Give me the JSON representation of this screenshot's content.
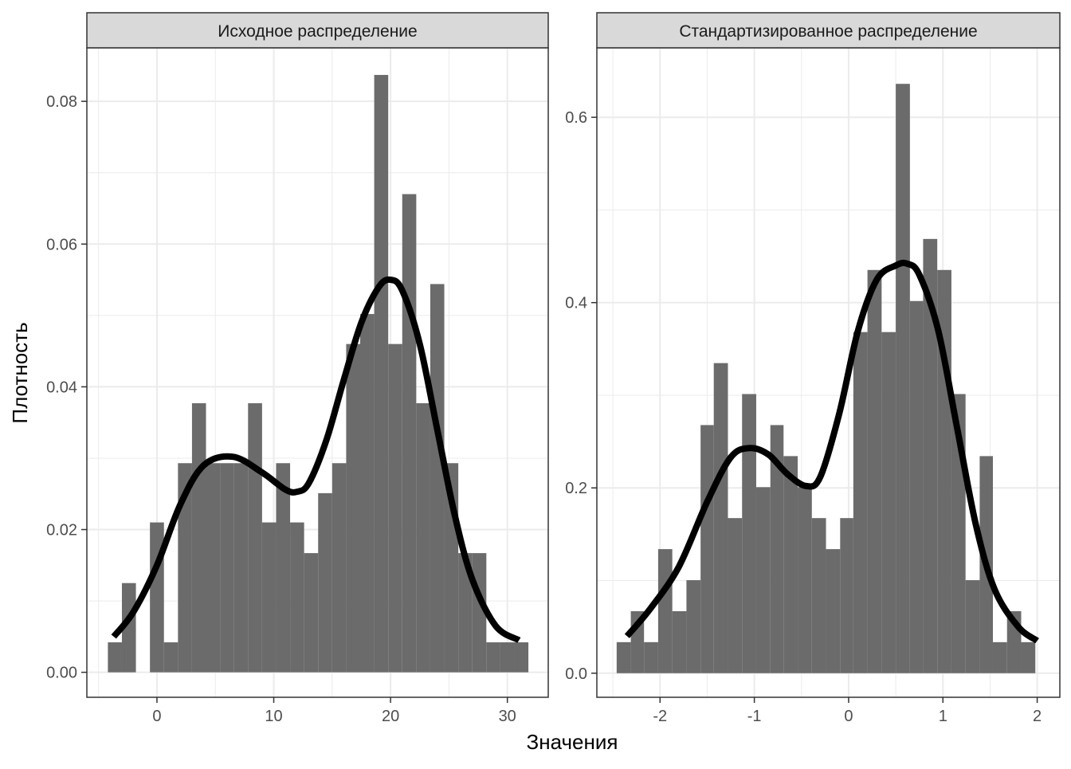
{
  "figure": {
    "xlabel": "Значения",
    "ylabel": "Плотность",
    "background_color": "#ffffff",
    "strip_fill": "#d9d9d9",
    "bar_color": "#6b6b6b",
    "curve_color": "#000000",
    "grid_color": "#ebebeb"
  },
  "chart_data": [
    {
      "type": "bar",
      "title": "Исходное распределение",
      "xlim": [
        -6,
        33.5
      ],
      "ylim": [
        -0.0035,
        0.0875
      ],
      "xticks": [
        0,
        10,
        20,
        30
      ],
      "yticks": [
        0.0,
        0.02,
        0.04,
        0.06,
        0.08
      ],
      "ytick_labels": [
        "0.00",
        "0.02",
        "0.04",
        "0.06",
        "0.08"
      ],
      "grid": true,
      "bins": [
        {
          "x0": -4.2,
          "x1": -3.0,
          "value": 0.0042
        },
        {
          "x0": -3.0,
          "x1": -1.8,
          "value": 0.0125
        },
        {
          "x0": -0.6,
          "x1": 0.6,
          "value": 0.021
        },
        {
          "x0": 0.6,
          "x1": 1.8,
          "value": 0.0042
        },
        {
          "x0": 1.8,
          "x1": 3.0,
          "value": 0.0293
        },
        {
          "x0": 3.0,
          "x1": 4.2,
          "value": 0.0377
        },
        {
          "x0": 4.2,
          "x1": 5.4,
          "value": 0.0293
        },
        {
          "x0": 5.4,
          "x1": 6.6,
          "value": 0.0293
        },
        {
          "x0": 6.6,
          "x1": 7.8,
          "value": 0.0293
        },
        {
          "x0": 7.8,
          "x1": 9.0,
          "value": 0.0377
        },
        {
          "x0": 9.0,
          "x1": 10.2,
          "value": 0.021
        },
        {
          "x0": 10.2,
          "x1": 11.4,
          "value": 0.0293
        },
        {
          "x0": 11.4,
          "x1": 12.6,
          "value": 0.021
        },
        {
          "x0": 12.6,
          "x1": 13.8,
          "value": 0.0167
        },
        {
          "x0": 13.8,
          "x1": 15.0,
          "value": 0.0251
        },
        {
          "x0": 15.0,
          "x1": 16.2,
          "value": 0.0293
        },
        {
          "x0": 16.2,
          "x1": 17.4,
          "value": 0.046
        },
        {
          "x0": 17.4,
          "x1": 18.6,
          "value": 0.0502
        },
        {
          "x0": 18.6,
          "x1": 19.8,
          "value": 0.0837
        },
        {
          "x0": 19.8,
          "x1": 21.0,
          "value": 0.046
        },
        {
          "x0": 21.0,
          "x1": 22.2,
          "value": 0.067
        },
        {
          "x0": 22.2,
          "x1": 23.4,
          "value": 0.0377
        },
        {
          "x0": 23.4,
          "x1": 24.6,
          "value": 0.0544
        },
        {
          "x0": 24.6,
          "x1": 25.8,
          "value": 0.0293
        },
        {
          "x0": 25.8,
          "x1": 27.0,
          "value": 0.0167
        },
        {
          "x0": 27.0,
          "x1": 28.2,
          "value": 0.0167
        },
        {
          "x0": 28.2,
          "x1": 29.4,
          "value": 0.0042
        },
        {
          "x0": 29.4,
          "x1": 30.6,
          "value": 0.0042
        },
        {
          "x0": 30.6,
          "x1": 31.8,
          "value": 0.0042
        }
      ],
      "density": {
        "x": [
          -3.7,
          -2.0,
          0.0,
          2.0,
          4.0,
          6.5,
          9.0,
          11.0,
          12.0,
          13.0,
          14.5,
          16.0,
          17.5,
          19.0,
          20.0,
          21.0,
          22.5,
          24.0,
          25.5,
          27.0,
          29.0,
          31.0
        ],
        "y": [
          0.005,
          0.0085,
          0.015,
          0.0235,
          0.029,
          0.0302,
          0.028,
          0.0256,
          0.0253,
          0.0265,
          0.0325,
          0.041,
          0.049,
          0.054,
          0.055,
          0.0535,
          0.046,
          0.034,
          0.022,
          0.013,
          0.0065,
          0.0045
        ]
      }
    },
    {
      "type": "bar",
      "title": "Стандартизированное распределение",
      "xlim": [
        -2.67,
        2.24
      ],
      "ylim": [
        -0.026,
        0.675
      ],
      "xticks": [
        -2,
        -1,
        0,
        1,
        2
      ],
      "yticks": [
        0.0,
        0.2,
        0.4,
        0.6
      ],
      "ytick_labels": [
        "0.0",
        "0.2",
        "0.4",
        "0.6"
      ],
      "grid": true,
      "bins": [
        {
          "x0": -2.46,
          "x1": -2.31,
          "value": 0.0335
        },
        {
          "x0": -2.31,
          "x1": -2.17,
          "value": 0.0669
        },
        {
          "x0": -2.17,
          "x1": -2.02,
          "value": 0.0335
        },
        {
          "x0": -2.02,
          "x1": -1.87,
          "value": 0.1339
        },
        {
          "x0": -1.87,
          "x1": -1.72,
          "value": 0.0669
        },
        {
          "x0": -1.72,
          "x1": -1.57,
          "value": 0.1004
        },
        {
          "x0": -1.57,
          "x1": -1.43,
          "value": 0.2678
        },
        {
          "x0": -1.43,
          "x1": -1.28,
          "value": 0.3347
        },
        {
          "x0": -1.28,
          "x1": -1.13,
          "value": 0.1674
        },
        {
          "x0": -1.13,
          "x1": -0.98,
          "value": 0.3013
        },
        {
          "x0": -0.98,
          "x1": -0.83,
          "value": 0.2008
        },
        {
          "x0": -0.83,
          "x1": -0.69,
          "value": 0.2678
        },
        {
          "x0": -0.69,
          "x1": -0.54,
          "value": 0.2343
        },
        {
          "x0": -0.54,
          "x1": -0.39,
          "value": 0.2008
        },
        {
          "x0": -0.39,
          "x1": -0.24,
          "value": 0.1674
        },
        {
          "x0": -0.24,
          "x1": -0.09,
          "value": 0.1339
        },
        {
          "x0": -0.09,
          "x1": 0.05,
          "value": 0.1674
        },
        {
          "x0": 0.05,
          "x1": 0.2,
          "value": 0.3682
        },
        {
          "x0": 0.2,
          "x1": 0.35,
          "value": 0.4352
        },
        {
          "x0": 0.35,
          "x1": 0.5,
          "value": 0.3682
        },
        {
          "x0": 0.5,
          "x1": 0.65,
          "value": 0.6361
        },
        {
          "x0": 0.65,
          "x1": 0.79,
          "value": 0.4017
        },
        {
          "x0": 0.79,
          "x1": 0.94,
          "value": 0.4687
        },
        {
          "x0": 0.94,
          "x1": 1.09,
          "value": 0.4352
        },
        {
          "x0": 1.09,
          "x1": 1.24,
          "value": 0.3013
        },
        {
          "x0": 1.24,
          "x1": 1.39,
          "value": 0.1004
        },
        {
          "x0": 1.39,
          "x1": 1.53,
          "value": 0.2343
        },
        {
          "x0": 1.53,
          "x1": 1.68,
          "value": 0.0335
        },
        {
          "x0": 1.68,
          "x1": 1.83,
          "value": 0.0669
        },
        {
          "x0": 1.83,
          "x1": 1.98,
          "value": 0.0335
        }
      ],
      "density": {
        "x": [
          -2.35,
          -2.1,
          -1.8,
          -1.5,
          -1.25,
          -1.05,
          -0.85,
          -0.65,
          -0.45,
          -0.3,
          -0.1,
          0.1,
          0.3,
          0.5,
          0.62,
          0.75,
          0.95,
          1.15,
          1.35,
          1.55,
          1.8,
          2.0
        ],
        "y": [
          0.04,
          0.07,
          0.115,
          0.185,
          0.233,
          0.243,
          0.236,
          0.215,
          0.202,
          0.212,
          0.28,
          0.37,
          0.425,
          0.44,
          0.442,
          0.43,
          0.37,
          0.265,
          0.16,
          0.09,
          0.05,
          0.035
        ]
      }
    }
  ]
}
